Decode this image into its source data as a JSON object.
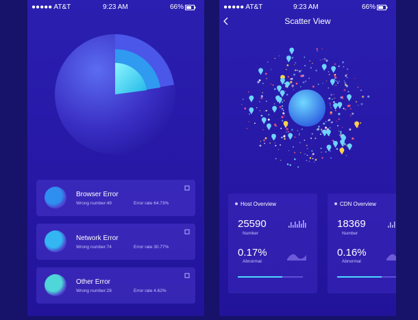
{
  "screens": [
    {
      "status": {
        "carrier": "●●●●● AT&T",
        "time": "9:23 AM",
        "battery": "66%"
      },
      "errors": [
        {
          "title": "Browser Error",
          "wrong": "Wrong number:49",
          "rate": "Error rate 64.73%"
        },
        {
          "title": "Network Error",
          "wrong": "Wrong number:74",
          "rate": "Error rate 30.77%"
        },
        {
          "title": "Other Error",
          "wrong": "Wrong number:28",
          "rate": "Error rate 4.62%"
        }
      ]
    },
    {
      "status": {
        "carrier": "●●●●● AT&T",
        "time": "9:23 AM",
        "battery": "66%"
      },
      "title": "Scatter View",
      "overviews": [
        {
          "title": "Host Overview",
          "number": "25590",
          "number_label": "Number",
          "abnormal": "0.17%",
          "abnormal_label": "Abnormal"
        },
        {
          "title": "CDN Overview",
          "number": "18369",
          "number_label": "Number",
          "abnormal": "0.16%",
          "abnormal_label": "Abnormal"
        }
      ]
    }
  ]
}
